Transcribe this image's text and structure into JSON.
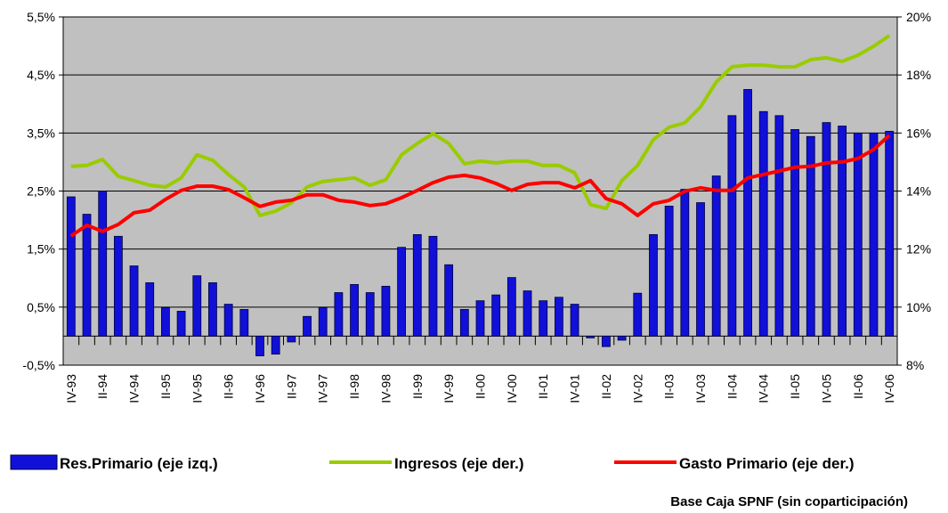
{
  "chart_data": {
    "type": "bar",
    "note": "Base Caja SPNF (sin coparticipación)",
    "categories": [
      "IV-93",
      null,
      "II-94",
      null,
      "IV-94",
      null,
      "II-95",
      null,
      "IV-95",
      null,
      "II-96",
      null,
      "IV-96",
      null,
      "II-97",
      null,
      "IV-97",
      null,
      "II-98",
      null,
      "IV-98",
      null,
      "II-99",
      null,
      "IV-99",
      null,
      "II-00",
      null,
      "IV-00",
      null,
      "II-01",
      null,
      "IV-01",
      null,
      "II-02",
      null,
      "IV-02",
      null,
      "II-03",
      null,
      "IV-03",
      null,
      "II-04",
      null,
      "IV-04",
      null,
      "II-05",
      null,
      "IV-05",
      null,
      "II-06",
      null,
      "IV-06"
    ],
    "series": [
      {
        "name": "Res.Primario (eje izq.)",
        "type": "bar",
        "axis": "y",
        "color": "#1010d8",
        "values": [
          2.4,
          2.1,
          2.5,
          1.72,
          1.21,
          0.92,
          0.49,
          0.43,
          1.04,
          0.92,
          0.55,
          0.46,
          -0.34,
          -0.31,
          -0.1,
          0.34,
          0.49,
          0.75,
          0.89,
          0.75,
          0.86,
          1.53,
          1.75,
          1.72,
          1.23,
          0.46,
          0.61,
          0.71,
          1.01,
          0.78,
          0.61,
          0.67,
          0.55,
          -0.03,
          -0.18,
          -0.07,
          0.74,
          1.75,
          2.24,
          2.53,
          2.3,
          2.76,
          3.8,
          4.25,
          3.87,
          3.8,
          3.56,
          3.44,
          3.68,
          3.62,
          3.5,
          3.5,
          3.53
        ]
      },
      {
        "name": "Ingresos (eje der.)",
        "type": "line",
        "axis": "y2",
        "color": "#99cc00",
        "values": [
          14.85,
          14.88,
          15.09,
          14.51,
          14.36,
          14.2,
          14.14,
          14.45,
          15.25,
          15.06,
          14.57,
          14.14,
          13.16,
          13.31,
          13.59,
          14.14,
          14.33,
          14.39,
          14.45,
          14.2,
          14.39,
          15.25,
          15.64,
          15.98,
          15.64,
          14.94,
          15.03,
          14.97,
          15.03,
          15.03,
          14.88,
          14.88,
          14.63,
          13.53,
          13.4,
          14.36,
          14.88,
          15.77,
          16.2,
          16.35,
          16.9,
          17.76,
          18.28,
          18.34,
          18.34,
          18.28,
          18.28,
          18.53,
          18.59,
          18.47,
          18.68,
          18.99,
          19.36
        ]
      },
      {
        "name": "Gasto Primario (eje der.)",
        "type": "line",
        "axis": "y2",
        "color": "#ff0000",
        "values": [
          12.45,
          12.82,
          12.61,
          12.85,
          13.25,
          13.34,
          13.71,
          14.02,
          14.17,
          14.17,
          14.05,
          13.77,
          13.47,
          13.62,
          13.68,
          13.87,
          13.87,
          13.68,
          13.62,
          13.5,
          13.56,
          13.77,
          14.02,
          14.29,
          14.48,
          14.54,
          14.45,
          14.26,
          14.02,
          14.23,
          14.29,
          14.29,
          14.11,
          14.36,
          13.74,
          13.56,
          13.16,
          13.56,
          13.68,
          13.99,
          14.11,
          14.02,
          14.02,
          14.45,
          14.57,
          14.69,
          14.82,
          14.85,
          14.97,
          15.0,
          15.12,
          15.43,
          15.92
        ]
      }
    ],
    "ylim": [
      -0.5,
      5.5
    ],
    "yticks": [
      {
        "value": -0.5,
        "label": "-0,5%"
      },
      {
        "value": 0.5,
        "label": "0,5%"
      },
      {
        "value": 1.5,
        "label": "1,5%"
      },
      {
        "value": 2.5,
        "label": "2,5%"
      },
      {
        "value": 3.5,
        "label": "3,5%"
      },
      {
        "value": 4.5,
        "label": "4,5%"
      },
      {
        "value": 5.5,
        "label": "5,5%"
      }
    ],
    "y2lim": [
      8,
      20
    ],
    "y2ticks": [
      {
        "value": 8,
        "label": "8%"
      },
      {
        "value": 10,
        "label": "10%"
      },
      {
        "value": 12,
        "label": "12%"
      },
      {
        "value": 14,
        "label": "14%"
      },
      {
        "value": 16,
        "label": "16%"
      },
      {
        "value": 18,
        "label": "18%"
      },
      {
        "value": 20,
        "label": "20%"
      }
    ],
    "grid": true,
    "legend": "bottom",
    "background": "#c0c0c0"
  }
}
